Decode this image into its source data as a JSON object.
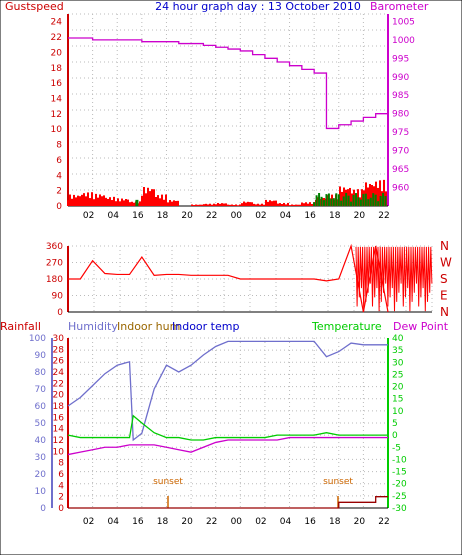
{
  "chart_data": [
    {
      "type": "line",
      "title": "24 hour graph day : 13 October 2010",
      "left_axis": {
        "label": "Gustspeed",
        "ticks": [
          0,
          2,
          4,
          6,
          8,
          10,
          12,
          14,
          16,
          18,
          20,
          22,
          24
        ],
        "range": [
          0,
          25
        ]
      },
      "right_axis": {
        "label": "Barometer",
        "ticks": [
          960,
          965,
          970,
          975,
          980,
          985,
          990,
          995,
          1000,
          1005
        ],
        "range": [
          955,
          1007
        ]
      },
      "x_ticks": [
        "02",
        "04",
        "16",
        "18",
        "20",
        "22",
        "00",
        "02",
        "04",
        "16",
        "18",
        "20",
        "22"
      ],
      "colors": {
        "gust": "#ff0000",
        "wind": "#008000",
        "barometer": "#cc00cc",
        "speed_avg": "#0000cc"
      },
      "series": [
        {
          "name": "Gustspeed",
          "color": "#ff0000",
          "x": [
            0,
            1,
            2,
            3,
            4,
            5,
            6,
            7,
            8,
            9,
            10,
            11,
            12,
            13,
            14,
            15,
            16,
            17,
            18,
            19,
            20,
            21,
            22,
            23,
            24,
            25,
            26
          ],
          "values": [
            1.5,
            1.8,
            1.6,
            1.2,
            1.0,
            0.6,
            2.5,
            1.5,
            0.8,
            0,
            0.2,
            0.3,
            0.4,
            0.2,
            0.6,
            0.3,
            0.8,
            0.4,
            0.2,
            0.5,
            1.2,
            1.5,
            2.6,
            2.2,
            3.2,
            3.4,
            3.8
          ]
        },
        {
          "name": "Barometer",
          "color": "#cc00cc",
          "x": [
            0,
            1,
            2,
            3,
            4,
            5,
            6,
            7,
            8,
            9,
            10,
            11,
            12,
            13,
            14,
            15,
            16,
            17,
            18,
            19,
            20,
            21,
            22,
            23,
            24,
            25,
            26
          ],
          "values": [
            1000.5,
            1000.5,
            1000,
            1000,
            1000,
            1000,
            999.5,
            999.5,
            999.5,
            999,
            999,
            998.5,
            998,
            997.5,
            997,
            996,
            995,
            994,
            993,
            992,
            991,
            976,
            977,
            978,
            979,
            980,
            982
          ]
        }
      ]
    },
    {
      "type": "line",
      "left_axis": {
        "ticks": [
          0,
          90,
          180,
          270,
          360
        ],
        "range": [
          0,
          360
        ]
      },
      "right_axis": {
        "ticks": [
          "N",
          "W",
          "S",
          "E",
          "N"
        ]
      },
      "series": [
        {
          "name": "Wind direction",
          "color": "#ff0000",
          "x": [
            0,
            1,
            2,
            3,
            4,
            5,
            6,
            7,
            8,
            9,
            10,
            11,
            12,
            13,
            14,
            15,
            16,
            17,
            18,
            19,
            20,
            21,
            22,
            23,
            24,
            25,
            26
          ],
          "values": [
            180,
            180,
            280,
            210,
            205,
            205,
            300,
            200,
            205,
            205,
            200,
            200,
            200,
            200,
            180,
            180,
            180,
            180,
            180,
            180,
            180,
            170,
            180,
            360,
            0,
            360,
            0
          ]
        }
      ]
    },
    {
      "type": "line",
      "legend": [
        "Rainfall",
        "Humidity",
        "Indoor hum",
        "Indoor temp",
        "Temperature",
        "Dew Point"
      ],
      "left_axis_hum": {
        "ticks": [
          0,
          10,
          20,
          30,
          40,
          50,
          60,
          70,
          80,
          90,
          100
        ],
        "range": [
          0,
          100
        ]
      },
      "left_axis_rain": {
        "ticks": [
          0,
          2,
          4,
          6,
          8,
          10,
          12,
          14,
          16,
          18,
          20,
          22,
          24,
          26,
          28,
          30
        ],
        "range": [
          0,
          30
        ]
      },
      "right_axis": {
        "ticks": [
          40,
          35,
          30,
          25,
          20,
          15,
          10,
          5,
          0,
          -5,
          -10,
          -15,
          -20,
          -25,
          -30
        ],
        "range": [
          -30,
          40
        ]
      },
      "annotations": [
        "sunset",
        "sunset"
      ],
      "series": [
        {
          "name": "Humidity",
          "color": "#6f6fcc",
          "x": [
            0,
            1,
            2,
            3,
            4,
            5,
            5.3,
            6,
            7,
            8,
            9,
            10,
            11,
            12,
            13,
            14,
            15,
            16,
            17,
            18,
            19,
            20,
            21,
            22,
            23,
            24,
            25,
            26
          ],
          "values": [
            60,
            65,
            72,
            79,
            84,
            86,
            40,
            44,
            70,
            84,
            80,
            84,
            90,
            95,
            98,
            98,
            98,
            98,
            98,
            98,
            98,
            98,
            89,
            92,
            97,
            96,
            96,
            96
          ]
        },
        {
          "name": "Temperature",
          "color": "#00cc00",
          "x": [
            0,
            1,
            2,
            3,
            4,
            5,
            5.3,
            6,
            7,
            8,
            9,
            10,
            11,
            12,
            13,
            14,
            15,
            16,
            17,
            18,
            19,
            20,
            21,
            22,
            23,
            24,
            25,
            26
          ],
          "values": [
            0,
            -1,
            -1,
            -1,
            -1,
            -1,
            8,
            5,
            1,
            -1,
            -1,
            -2,
            -2,
            -1,
            -1,
            -1,
            -1,
            -1,
            0,
            0,
            0,
            0,
            1,
            0,
            0,
            0,
            0,
            0
          ]
        },
        {
          "name": "Dew Point",
          "color": "#cc00cc",
          "x": [
            0,
            1,
            2,
            3,
            4,
            5,
            5.3,
            6,
            7,
            8,
            9,
            10,
            11,
            12,
            13,
            14,
            15,
            16,
            17,
            18,
            19,
            20,
            21,
            22,
            23,
            24,
            25,
            26
          ],
          "values": [
            -8,
            -7,
            -6,
            -5,
            -5,
            -4,
            -4,
            -4,
            -4,
            -5,
            -6,
            -7,
            -5,
            -3,
            -2,
            -2,
            -2,
            -2,
            -2,
            -1,
            -1,
            -1,
            -1,
            -1,
            -1,
            -1,
            -1,
            -1
          ]
        },
        {
          "name": "Rainfall",
          "color": "#990000",
          "x": [
            0,
            1,
            2,
            3,
            4,
            5,
            6,
            7,
            8,
            9,
            10,
            11,
            12,
            13,
            14,
            15,
            16,
            17,
            18,
            19,
            20,
            21,
            22,
            23,
            24,
            25,
            26
          ],
          "values": [
            0,
            0,
            0,
            0,
            0,
            0,
            0,
            0,
            0,
            0,
            0,
            0,
            0,
            0,
            0,
            0,
            0,
            0,
            0,
            0,
            0,
            0,
            1,
            1,
            1,
            2,
            2
          ]
        }
      ]
    }
  ]
}
